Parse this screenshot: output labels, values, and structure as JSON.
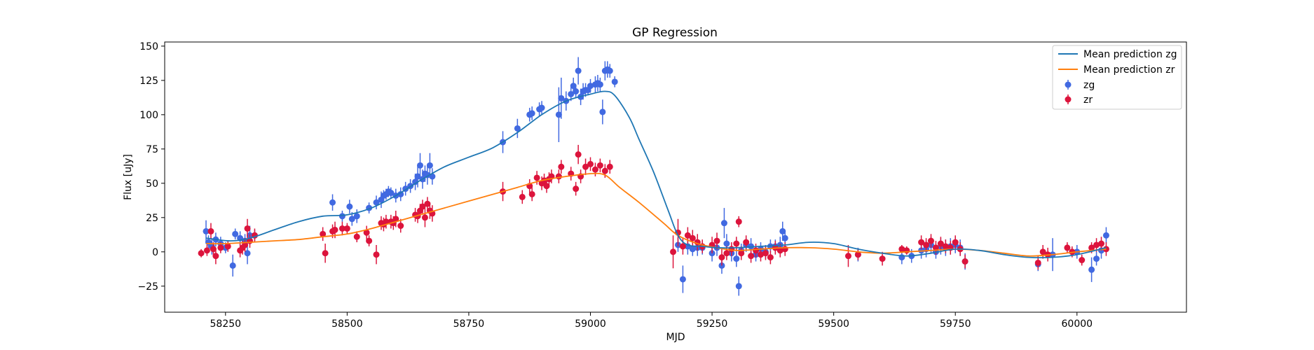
{
  "chart_data": {
    "type": "scatter",
    "title": "GP Regression",
    "xlabel": "MJD",
    "ylabel": "Flux [uJy]",
    "xlim": [
      58125,
      60225
    ],
    "ylim": [
      -44,
      153
    ],
    "xticks": [
      58250,
      58500,
      58750,
      59000,
      59250,
      59500,
      59750,
      60000
    ],
    "yticks": [
      -25,
      0,
      25,
      50,
      75,
      100,
      125,
      150
    ],
    "grid": false,
    "legend_position": "top-right",
    "legend": [
      "Mean prediction zg",
      "Mean prediction zr",
      "zg",
      "zr"
    ],
    "colors": {
      "zg_line": "#1f77b4",
      "zr_line": "#ff7f0e",
      "zg_points": "#4169e1",
      "zr_points": "#dc143c"
    },
    "mean_zg": {
      "x": [
        58210,
        58260,
        58300,
        58350,
        58400,
        58450,
        58500,
        58550,
        58600,
        58650,
        58700,
        58750,
        58800,
        58850,
        58900,
        58950,
        59000,
        59030,
        59050,
        59080,
        59100,
        59130,
        59160,
        59180,
        59200,
        59230,
        59260,
        59300,
        59350,
        59400,
        59450,
        59500,
        59550,
        59600,
        59650,
        59700,
        59750,
        59800,
        59850,
        59900,
        59950,
        60000,
        60060
      ],
      "y": [
        10,
        8,
        10,
        16,
        22,
        26,
        27,
        32,
        41,
        52,
        62,
        69,
        76,
        87,
        100,
        110,
        115,
        117,
        114,
        98,
        82,
        58,
        30,
        12,
        5,
        4,
        3,
        3,
        4,
        5,
        7,
        6,
        2,
        -1,
        -3,
        -1,
        2,
        1,
        -2,
        -4,
        -4,
        -2,
        3
      ]
    },
    "mean_zr": {
      "x": [
        58210,
        58250,
        58300,
        58350,
        58400,
        58450,
        58500,
        58550,
        58600,
        58650,
        58700,
        58750,
        58800,
        58850,
        58900,
        58950,
        59000,
        59030,
        59060,
        59100,
        59150,
        59180,
        59220,
        59260,
        59300,
        59350,
        59400,
        59450,
        59500,
        59550,
        59600,
        59650,
        59700,
        59750,
        59800,
        59850,
        59900,
        59950,
        60000,
        60060
      ],
      "y": [
        6,
        6,
        7,
        8,
        9,
        11,
        13,
        17,
        22,
        27,
        32,
        37,
        42,
        47,
        52,
        55,
        57,
        56,
        47,
        36,
        21,
        12,
        6,
        3,
        1,
        2,
        3,
        3,
        2,
        0,
        -1,
        0,
        1,
        2,
        1,
        -1,
        -3,
        -2,
        0,
        2
      ]
    },
    "series": [
      {
        "name": "zg",
        "x": [
          58210,
          58215,
          58222,
          58230,
          58240,
          58250,
          58265,
          58270,
          58280,
          58290,
          58295,
          58300,
          58310,
          58470,
          58490,
          58505,
          58510,
          58520,
          58545,
          58560,
          58570,
          58575,
          58580,
          58585,
          58590,
          58600,
          58610,
          58620,
          58630,
          58640,
          58645,
          58650,
          58655,
          58660,
          58665,
          58670,
          58675,
          58820,
          58850,
          58875,
          58880,
          58895,
          58900,
          58935,
          58940,
          58950,
          58960,
          58965,
          58970,
          58975,
          58980,
          58985,
          58990,
          58995,
          59000,
          59010,
          59015,
          59020,
          59025,
          59030,
          59035,
          59040,
          59050,
          59180,
          59190,
          59200,
          59210,
          59220,
          59230,
          59250,
          59260,
          59270,
          59275,
          59280,
          59290,
          59300,
          59305,
          59310,
          59320,
          59330,
          59340,
          59350,
          59360,
          59370,
          59380,
          59390,
          59395,
          59400,
          59550,
          59640,
          59660,
          59680,
          59690,
          59700,
          59710,
          59720,
          59730,
          59740,
          59750,
          59760,
          59770,
          59920,
          59950,
          60000,
          60030,
          60040,
          60050,
          60060
        ],
        "y": [
          15,
          7,
          4,
          9,
          6,
          3,
          -10,
          13,
          10,
          8,
          -1,
          12,
          12,
          36,
          26,
          33,
          24,
          26,
          32,
          36,
          38,
          41,
          42,
          44,
          43,
          41,
          42,
          46,
          48,
          51,
          55,
          63,
          53,
          57,
          56,
          63,
          55,
          80,
          90,
          100,
          101,
          104,
          105,
          100,
          112,
          110,
          115,
          121,
          117,
          132,
          113,
          117,
          118,
          118,
          121,
          122,
          123,
          122,
          102,
          132,
          133,
          132,
          124,
          5,
          -20,
          4,
          2,
          3,
          3,
          -1,
          3,
          -10,
          21,
          6,
          -1,
          -5,
          -25,
          1,
          5,
          4,
          -2,
          2,
          0,
          4,
          4,
          5,
          15,
          10,
          -2,
          -4,
          -3,
          1,
          2,
          5,
          0,
          4,
          3,
          4,
          5,
          3,
          -7,
          -9,
          -2,
          0,
          -13,
          -5,
          1,
          12
        ],
        "yerr": [
          8,
          5,
          6,
          5,
          5,
          4,
          8,
          4,
          5,
          5,
          8,
          7,
          4,
          6,
          4,
          5,
          5,
          5,
          4,
          5,
          6,
          4,
          4,
          4,
          4,
          5,
          5,
          5,
          5,
          6,
          8,
          9,
          7,
          6,
          7,
          9,
          6,
          8,
          7,
          5,
          5,
          5,
          5,
          20,
          15,
          7,
          5,
          6,
          5,
          10,
          6,
          6,
          5,
          4,
          5,
          6,
          6,
          5,
          9,
          7,
          6,
          5,
          4,
          5,
          10,
          6,
          5,
          6,
          5,
          6,
          6,
          6,
          11,
          7,
          6,
          6,
          7,
          5,
          5,
          6,
          5,
          5,
          5,
          5,
          5,
          6,
          7,
          6,
          5,
          5,
          5,
          6,
          6,
          6,
          5,
          6,
          6,
          6,
          6,
          6,
          6,
          5,
          12,
          5,
          9,
          5,
          6,
          6
        ]
      },
      {
        "name": "zr",
        "x": [
          58200,
          58212,
          58220,
          58225,
          58230,
          58240,
          58255,
          58280,
          58285,
          58290,
          58295,
          58300,
          58310,
          58450,
          58455,
          58470,
          58475,
          58490,
          58500,
          58520,
          58540,
          58545,
          58560,
          58570,
          58575,
          58580,
          58590,
          58595,
          58600,
          58610,
          58640,
          58645,
          58650,
          58655,
          58660,
          58665,
          58670,
          58675,
          58820,
          58860,
          58875,
          58880,
          58890,
          58900,
          58905,
          58910,
          58915,
          58920,
          58935,
          58940,
          58960,
          58970,
          58975,
          58980,
          58990,
          59000,
          59010,
          59020,
          59030,
          59040,
          59170,
          59180,
          59190,
          59200,
          59210,
          59220,
          59230,
          59250,
          59260,
          59270,
          59280,
          59290,
          59300,
          59305,
          59310,
          59320,
          59330,
          59340,
          59350,
          59360,
          59370,
          59380,
          59390,
          59400,
          59530,
          59550,
          59600,
          59640,
          59650,
          59680,
          59690,
          59700,
          59710,
          59720,
          59730,
          59740,
          59750,
          59760,
          59770,
          59920,
          59930,
          59940,
          59980,
          59990,
          60010,
          60030,
          60040,
          60050,
          60060
        ],
        "y": [
          -1,
          1,
          15,
          2,
          -3,
          3,
          4,
          1,
          3,
          5,
          17,
          8,
          12,
          13,
          -1,
          15,
          16,
          17,
          17,
          11,
          14,
          8,
          -2,
          21,
          20,
          22,
          22,
          21,
          24,
          19,
          27,
          26,
          30,
          33,
          25,
          35,
          30,
          28,
          44,
          40,
          48,
          42,
          54,
          50,
          52,
          48,
          53,
          55,
          55,
          62,
          57,
          46,
          71,
          55,
          62,
          64,
          60,
          63,
          59,
          62,
          0,
          14,
          4,
          12,
          10,
          7,
          4,
          5,
          8,
          -4,
          -1,
          2,
          6,
          22,
          -1,
          7,
          -3,
          1,
          -2,
          -1,
          -4,
          3,
          1,
          2,
          -3,
          -2,
          -5,
          2,
          1,
          7,
          5,
          8,
          3,
          6,
          4,
          3,
          7,
          2,
          -7,
          -8,
          0,
          -2,
          3,
          0,
          -6,
          3,
          5,
          6,
          2
        ],
        "yerr": [
          3,
          4,
          6,
          5,
          6,
          4,
          4,
          5,
          5,
          5,
          7,
          5,
          5,
          5,
          7,
          5,
          6,
          5,
          4,
          4,
          5,
          4,
          7,
          5,
          5,
          5,
          5,
          5,
          6,
          5,
          5,
          5,
          5,
          5,
          7,
          5,
          6,
          6,
          7,
          5,
          5,
          5,
          5,
          5,
          5,
          5,
          5,
          5,
          5,
          5,
          5,
          5,
          7,
          5,
          6,
          5,
          5,
          5,
          5,
          5,
          12,
          10,
          6,
          6,
          6,
          6,
          5,
          6,
          6,
          6,
          5,
          5,
          5,
          4,
          5,
          5,
          5,
          5,
          5,
          5,
          5,
          5,
          5,
          5,
          8,
          4,
          5,
          3,
          3,
          5,
          5,
          5,
          5,
          5,
          5,
          5,
          5,
          5,
          5,
          5,
          5,
          5,
          4,
          4,
          4,
          4,
          5,
          5,
          5
        ]
      }
    ]
  }
}
